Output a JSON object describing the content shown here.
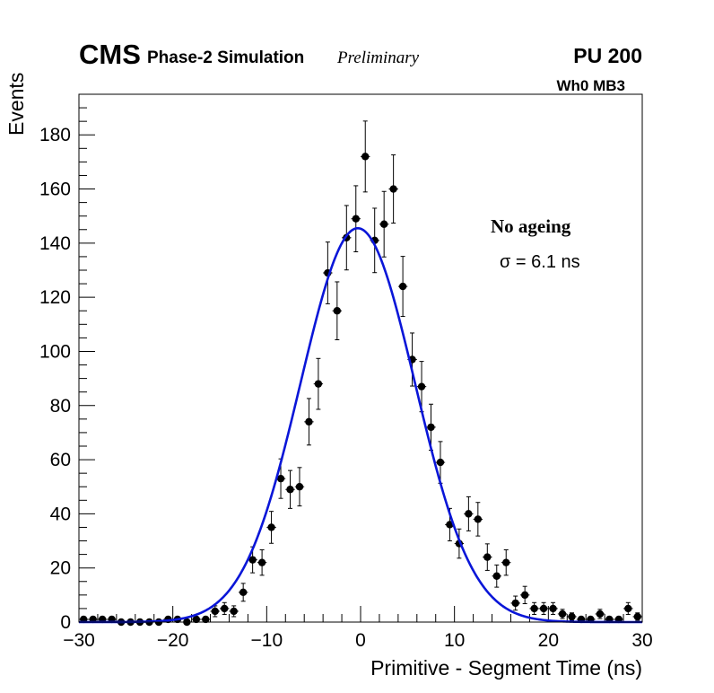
{
  "chart_data": {
    "type": "scatter",
    "title": "",
    "xlabel": "Primitive - Segment Time (ns)",
    "ylabel": "Events",
    "xlim": [
      -30,
      30
    ],
    "ylim": [
      0,
      195
    ],
    "xticks": [
      -30,
      -20,
      -10,
      0,
      10,
      20,
      30
    ],
    "yticks": [
      0,
      20,
      40,
      60,
      80,
      100,
      120,
      140,
      160,
      180
    ],
    "xtick_labels": [
      "−30",
      "−20",
      "−10",
      "0",
      "10",
      "20",
      "30"
    ],
    "ytick_labels": [
      "0",
      "20",
      "40",
      "60",
      "80",
      "100",
      "120",
      "140",
      "160",
      "180"
    ],
    "grid": false,
    "annotations": {
      "cms": "CMS",
      "phase": "Phase-2 Simulation",
      "preliminary": "Preliminary",
      "pileup": "PU 200",
      "chamber": "Wh0 MB3",
      "condition": "No ageing",
      "sigma": "σ = 6.1 ns"
    },
    "series": [
      {
        "name": "data",
        "x": [
          -29.5,
          -28.5,
          -27.5,
          -26.5,
          -25.5,
          -24.5,
          -23.5,
          -22.5,
          -21.5,
          -20.5,
          -19.5,
          -18.5,
          -17.5,
          -16.5,
          -15.5,
          -14.5,
          -13.5,
          -12.5,
          -11.5,
          -10.5,
          -9.5,
          -8.5,
          -7.5,
          -6.5,
          -5.5,
          -4.5,
          -3.5,
          -2.5,
          -1.5,
          -0.5,
          0.5,
          1.5,
          2.5,
          3.5,
          4.5,
          5.5,
          6.5,
          7.5,
          8.5,
          9.5,
          10.5,
          11.5,
          12.5,
          13.5,
          14.5,
          15.5,
          16.5,
          17.5,
          18.5,
          19.5,
          20.5,
          21.5,
          22.5,
          23.5,
          24.5,
          25.5,
          26.5,
          27.5,
          28.5,
          29.5
        ],
        "y": [
          1,
          1,
          1,
          1,
          0,
          0,
          0,
          0,
          0,
          1,
          1,
          0,
          1,
          1,
          4,
          5,
          4,
          11,
          23,
          22,
          35,
          53,
          49,
          50,
          74,
          88,
          129,
          115,
          142,
          149,
          172,
          141,
          147,
          160,
          124,
          97,
          87,
          72,
          59,
          36,
          29,
          40,
          38,
          24,
          17,
          22,
          7,
          10,
          5,
          5,
          5,
          3,
          2,
          1,
          1,
          3,
          1,
          1,
          5,
          2
        ],
        "yerr": [
          1,
          1,
          1,
          1,
          0,
          0,
          0,
          0,
          0,
          1,
          1,
          0,
          1,
          1,
          2,
          2.2,
          2,
          3.3,
          4.8,
          4.7,
          5.9,
          7.3,
          7,
          7.1,
          8.6,
          9.4,
          11.4,
          10.7,
          11.9,
          12.2,
          13.1,
          11.9,
          12.1,
          12.6,
          11.1,
          9.8,
          9.3,
          8.5,
          7.7,
          6,
          5.4,
          6.3,
          6.2,
          4.9,
          4.1,
          4.7,
          2.6,
          3.2,
          2.2,
          2.2,
          2.2,
          1.7,
          1.4,
          1,
          1,
          1.7,
          1,
          1,
          2.2,
          1.4
        ]
      },
      {
        "name": "Gaussian fit",
        "function": "gaussian",
        "amplitude": 145.5,
        "mean": -0.3,
        "sigma": 6.1,
        "color": "#0a16d8"
      }
    ]
  },
  "colors": {
    "markers": "#000000",
    "fit": "#0a16d8",
    "frame": "#000000"
  }
}
